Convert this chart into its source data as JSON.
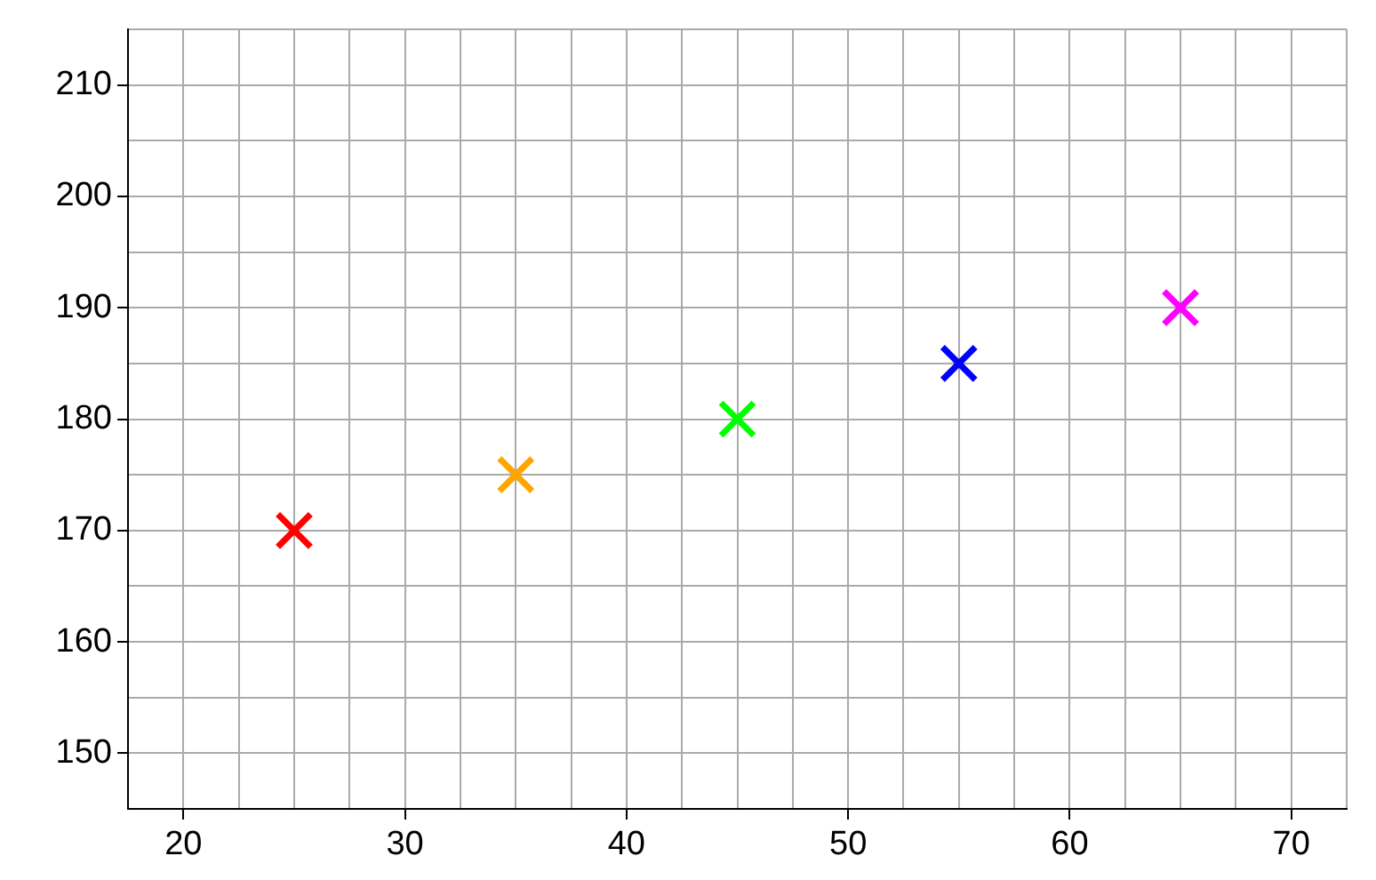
{
  "chart_data": {
    "type": "scatter",
    "x": [
      25,
      35,
      45,
      55,
      65
    ],
    "values": [
      170,
      175,
      180,
      185,
      190
    ],
    "colors": [
      "#ff0000",
      "#ffa500",
      "#00ff00",
      "#0000ff",
      "#ff00ff"
    ],
    "marker": "cross",
    "xlim": [
      17.5,
      72.5
    ],
    "xticks": [
      20,
      {
        "value": 22.5,
        "label": null
      },
      {
        "value": 25,
        "label": null
      },
      {
        "value": 27.5,
        "label": null
      },
      30,
      {
        "value": 32.5,
        "label": null
      },
      {
        "value": 35,
        "label": null
      },
      {
        "value": 37.5,
        "label": null
      },
      40,
      {
        "value": 42.5,
        "label": null
      },
      {
        "value": 45,
        "label": null
      },
      {
        "value": 47.5,
        "label": null
      },
      50,
      {
        "value": 52.5,
        "label": null
      },
      {
        "value": 55,
        "label": null
      },
      {
        "value": 57.5,
        "label": null
      },
      60,
      {
        "value": 62.5,
        "label": null
      },
      {
        "value": 65,
        "label": null
      },
      {
        "value": 67.5,
        "label": null
      },
      70,
      {
        "value": 72.5,
        "label": null
      }
    ],
    "ylim": [
      145,
      215
    ],
    "yticks": [
      150,
      {
        "value": 155,
        "label": null
      },
      160,
      {
        "value": 165,
        "label": null
      },
      170,
      {
        "value": 175,
        "label": null
      },
      180,
      {
        "value": 185,
        "label": null
      },
      190,
      {
        "value": 195,
        "label": null
      },
      200,
      {
        "value": 205,
        "label": null
      },
      210,
      {
        "value": 215,
        "label": null
      }
    ],
    "grid": true
  }
}
